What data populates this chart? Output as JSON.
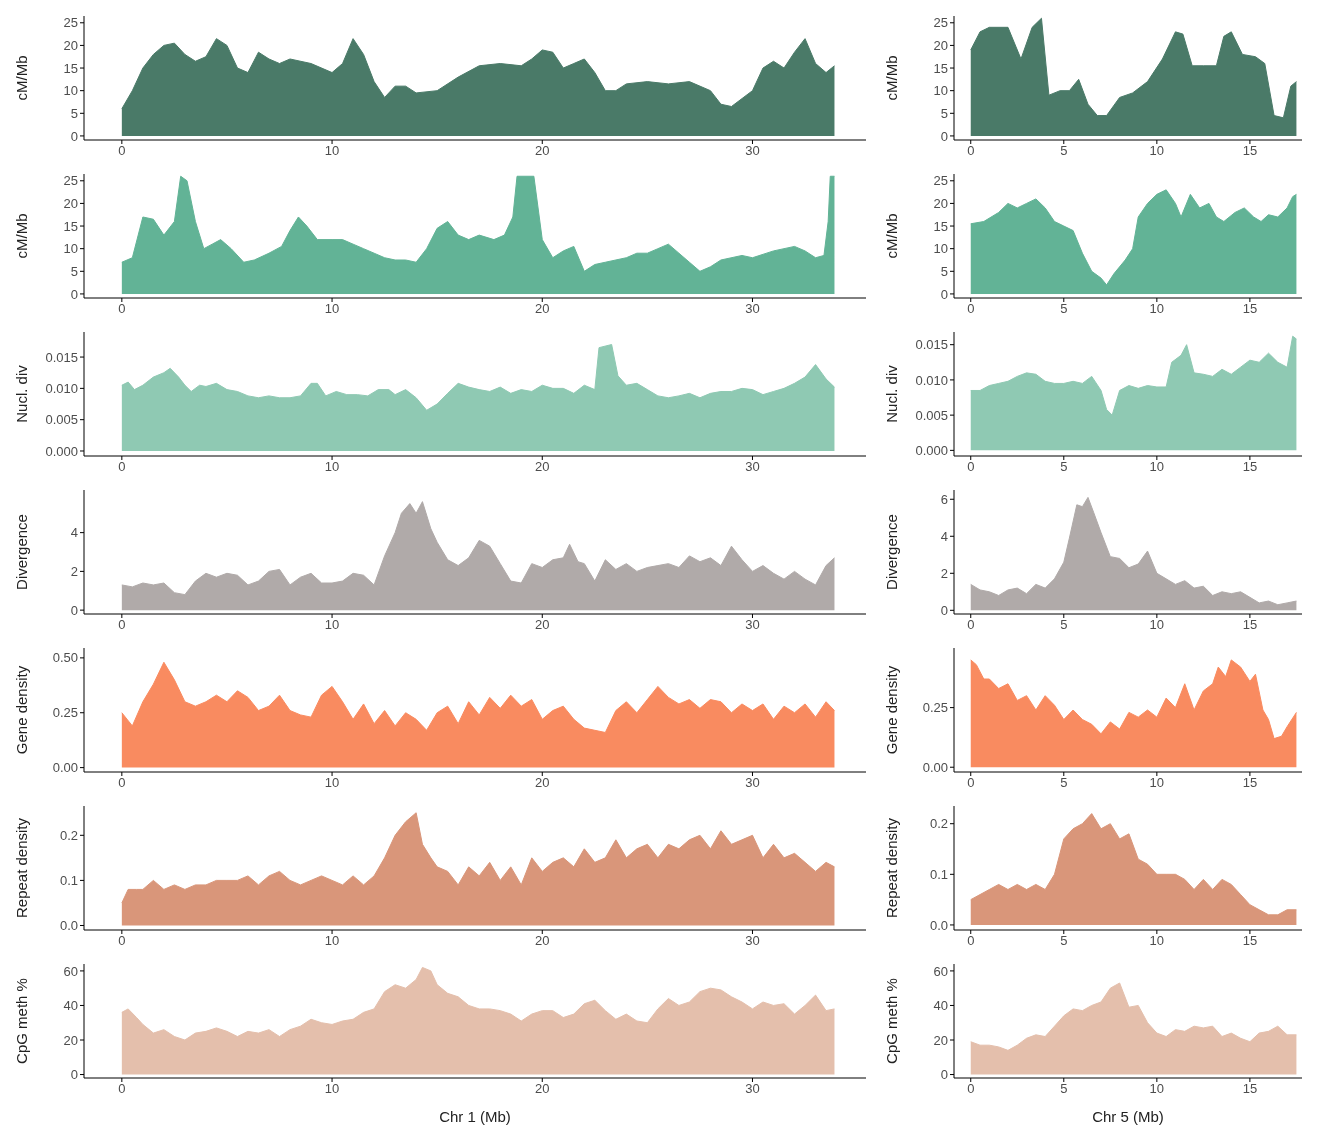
{
  "chart_data": [
    {
      "type": "area",
      "ylabel": "cM/Mb",
      "color": "#4a7a68",
      "xlim": [
        -1.8,
        35.4
      ],
      "xticks": [
        0,
        10,
        20,
        30
      ],
      "ylim": [
        -0.9,
        26.5
      ],
      "yticks": [
        0,
        5,
        10,
        15,
        20,
        25
      ],
      "x": [
        0,
        0.5,
        1,
        1.5,
        2,
        2.5,
        3,
        3.5,
        4,
        4.5,
        5,
        5.5,
        6,
        6.5,
        7,
        7.5,
        8,
        9,
        10,
        10.5,
        11,
        11.5,
        12,
        12.5,
        13,
        13.5,
        14,
        15,
        16,
        17,
        18,
        19,
        19.5,
        20,
        20.5,
        21,
        21.5,
        22,
        22.5,
        23,
        23.5,
        24,
        25,
        26,
        27,
        28,
        28.5,
        29,
        30,
        30.5,
        31,
        31.5,
        32,
        32.5,
        33,
        33.5,
        33.9
      ],
      "values": [
        6,
        10,
        15,
        18,
        20,
        20.5,
        18,
        16.5,
        17.5,
        21.5,
        20,
        15,
        14,
        18.5,
        17,
        16,
        17,
        16,
        14,
        16,
        21.5,
        18,
        12,
        8.5,
        11,
        11,
        9.5,
        10,
        13,
        15.5,
        16,
        15.5,
        17,
        19,
        18.5,
        15,
        16,
        17,
        14,
        10,
        10,
        11.5,
        12,
        11.5,
        12,
        10,
        7,
        6.5,
        10,
        15,
        16.5,
        15,
        18.5,
        21.5,
        16,
        14,
        15.5
      ]
    },
    {
      "type": "area",
      "ylabel": "cM/Mb",
      "color": "#4a7a68",
      "xlim": [
        -0.9,
        17.8
      ],
      "xticks": [
        0,
        5,
        10,
        15
      ],
      "ylim": [
        -0.9,
        26.5
      ],
      "yticks": [
        0,
        5,
        10,
        15,
        20,
        25
      ],
      "x": [
        0,
        0.5,
        1,
        2,
        2.7,
        3.3,
        3.8,
        4.2,
        4.8,
        5.3,
        5.8,
        6.3,
        6.8,
        7.3,
        8,
        8.7,
        9.5,
        10.3,
        11,
        11.4,
        11.9,
        12.5,
        13.2,
        13.6,
        14,
        14.6,
        15.3,
        15.8,
        16.3,
        16.8,
        17.2,
        17.5
      ],
      "values": [
        19,
        23,
        24,
        24,
        17,
        24,
        26,
        9,
        10,
        10,
        12.5,
        7,
        4.5,
        4.5,
        8.5,
        9.5,
        12,
        17,
        23,
        22.5,
        15.5,
        15.5,
        15.5,
        22,
        23,
        18,
        17.5,
        16,
        4.5,
        4,
        11,
        12
      ]
    },
    {
      "type": "area",
      "ylabel": "cM/Mb",
      "color": "#62b396",
      "xlim": [
        -1.8,
        35.4
      ],
      "xticks": [
        0,
        10,
        20,
        30
      ],
      "ylim": [
        -0.9,
        26.5
      ],
      "yticks": [
        0,
        5,
        10,
        15,
        20,
        25
      ],
      "x": [
        0,
        0.5,
        1,
        1.5,
        2,
        2.5,
        2.8,
        3.1,
        3.5,
        3.9,
        4.3,
        4.7,
        5.2,
        5.8,
        6.3,
        7,
        7.6,
        8,
        8.4,
        8.8,
        9.3,
        10,
        10.5,
        11,
        11.5,
        12,
        12.5,
        13,
        13.5,
        14,
        14.5,
        15,
        15.5,
        16,
        16.5,
        17,
        17.7,
        18.2,
        18.6,
        18.8,
        19.6,
        20,
        20.5,
        21,
        21.5,
        22,
        22.5,
        23,
        24,
        24.5,
        25,
        25.5,
        26,
        26.5,
        27,
        27.5,
        28,
        28.5,
        29.5,
        30,
        31,
        32,
        32.5,
        33,
        33.4,
        33.6,
        33.7,
        33.9
      ],
      "values": [
        7,
        8,
        17,
        16.5,
        13,
        16,
        26,
        25,
        16,
        10,
        11,
        12,
        10,
        7,
        7.5,
        9,
        10.5,
        14,
        17,
        15,
        12,
        12,
        12,
        11,
        10,
        9,
        8,
        7.5,
        7.5,
        7,
        10,
        14.5,
        16,
        13,
        12,
        13,
        12,
        13,
        17,
        26,
        26,
        12,
        8,
        9.5,
        10.5,
        5,
        6.5,
        7,
        8,
        9,
        9,
        10,
        11,
        9,
        7,
        5,
        6,
        7.5,
        8.5,
        8,
        9.5,
        10.5,
        9.5,
        8,
        8.5,
        16,
        26,
        26
      ]
    },
    {
      "type": "area",
      "ylabel": "cM/Mb",
      "color": "#62b396",
      "xlim": [
        -0.9,
        17.8
      ],
      "xticks": [
        0,
        5,
        10,
        15
      ],
      "ylim": [
        -0.9,
        26.5
      ],
      "yticks": [
        0,
        5,
        10,
        15,
        20,
        25
      ],
      "x": [
        0,
        0.7,
        1.5,
        2,
        2.5,
        3,
        3.5,
        4,
        4.5,
        5,
        5.5,
        6,
        6.5,
        7,
        7.3,
        7.7,
        8.3,
        8.7,
        9,
        9.5,
        10,
        10.5,
        11,
        11.3,
        11.8,
        12.3,
        12.8,
        13.2,
        13.6,
        14.2,
        14.7,
        15.2,
        15.6,
        16,
        16.5,
        17,
        17.3,
        17.5
      ],
      "values": [
        15.5,
        16,
        18,
        20,
        19,
        20,
        21,
        19,
        16,
        15,
        14,
        9,
        5,
        3.5,
        2,
        4.5,
        7.5,
        10,
        17,
        20,
        22,
        23,
        20,
        17,
        22,
        19,
        20,
        17,
        16,
        18,
        19,
        17,
        16,
        17.5,
        17,
        19,
        21.5,
        22
      ]
    },
    {
      "type": "area",
      "ylabel": "Nucl. div",
      "color": "#8fc9b3",
      "xlim": [
        -1.8,
        35.4
      ],
      "xticks": [
        0,
        10,
        20,
        30
      ],
      "ylim": [
        -0.0008,
        0.019
      ],
      "yticks": [
        {
          "value": 0,
          "label": "0.000"
        },
        {
          "value": 0.005,
          "label": "0.005"
        },
        {
          "value": 0.01,
          "label": "0.010"
        },
        {
          "value": 0.015,
          "label": "0.015"
        }
      ],
      "x": [
        0,
        0.3,
        0.6,
        1,
        1.5,
        2,
        2.3,
        2.7,
        3,
        3.3,
        3.7,
        4,
        4.5,
        5,
        5.5,
        6,
        6.5,
        7,
        7.5,
        8,
        8.5,
        9,
        9.3,
        9.7,
        10.2,
        10.7,
        11.2,
        11.7,
        12.2,
        12.7,
        13,
        13.5,
        14,
        14.5,
        15,
        15.5,
        16,
        16.5,
        17,
        17.5,
        18,
        18.5,
        19,
        19.5,
        20,
        20.5,
        21,
        21.5,
        22,
        22.5,
        22.7,
        23.3,
        23.6,
        24,
        24.5,
        25,
        25.5,
        26,
        26.5,
        27,
        27.5,
        28,
        28.5,
        29,
        29.5,
        30,
        30.5,
        31,
        31.5,
        32,
        32.5,
        33,
        33.5,
        33.9
      ],
      "values": [
        0.0105,
        0.011,
        0.0098,
        0.0105,
        0.0118,
        0.0125,
        0.0132,
        0.0118,
        0.0105,
        0.0095,
        0.0105,
        0.0103,
        0.0108,
        0.0098,
        0.0095,
        0.0088,
        0.0085,
        0.0088,
        0.0085,
        0.0085,
        0.0088,
        0.0108,
        0.0108,
        0.0088,
        0.0095,
        0.009,
        0.009,
        0.0088,
        0.0098,
        0.0098,
        0.009,
        0.0098,
        0.0085,
        0.0065,
        0.0075,
        0.0092,
        0.0108,
        0.0102,
        0.0098,
        0.0095,
        0.0102,
        0.0092,
        0.0098,
        0.0095,
        0.0105,
        0.01,
        0.01,
        0.0092,
        0.0105,
        0.0098,
        0.0165,
        0.017,
        0.012,
        0.0105,
        0.0108,
        0.0098,
        0.0088,
        0.0085,
        0.0088,
        0.0092,
        0.0085,
        0.0092,
        0.0095,
        0.0095,
        0.01,
        0.0098,
        0.009,
        0.0095,
        0.01,
        0.0108,
        0.0118,
        0.0138,
        0.0115,
        0.0102
      ]
    },
    {
      "type": "area",
      "ylabel": "Nucl. div",
      "color": "#8fc9b3",
      "xlim": [
        -0.9,
        17.8
      ],
      "xticks": [
        0,
        5,
        10,
        15
      ],
      "ylim": [
        -0.0008,
        0.0168
      ],
      "yticks": [
        {
          "value": 0,
          "label": "0.000"
        },
        {
          "value": 0.005,
          "label": "0.005"
        },
        {
          "value": 0.01,
          "label": "0.010"
        },
        {
          "value": 0.015,
          "label": "0.015"
        }
      ],
      "x": [
        0,
        0.5,
        1,
        1.5,
        2,
        2.5,
        3,
        3.5,
        4,
        4.5,
        5,
        5.5,
        6,
        6.5,
        7,
        7.3,
        7.6,
        8,
        8.5,
        9,
        9.5,
        10,
        10.5,
        10.8,
        11.3,
        11.6,
        12,
        12.5,
        13,
        13.5,
        14,
        14.5,
        15,
        15.5,
        16,
        16.5,
        17,
        17.3,
        17.5
      ],
      "values": [
        0.0085,
        0.0085,
        0.0092,
        0.0095,
        0.0098,
        0.0105,
        0.011,
        0.0108,
        0.0098,
        0.0095,
        0.0095,
        0.0098,
        0.0095,
        0.0105,
        0.0085,
        0.0058,
        0.005,
        0.0085,
        0.0092,
        0.0088,
        0.0092,
        0.009,
        0.009,
        0.0125,
        0.0135,
        0.015,
        0.011,
        0.0108,
        0.0105,
        0.0115,
        0.0108,
        0.0118,
        0.0128,
        0.0125,
        0.0138,
        0.0125,
        0.0118,
        0.0162,
        0.0158
      ]
    },
    {
      "type": "area",
      "ylabel": "Divergence",
      "color": "#b0aaa9",
      "xlim": [
        -1.8,
        35.4
      ],
      "xticks": [
        0,
        10,
        20,
        30
      ],
      "ylim": [
        -0.2,
        6.2
      ],
      "yticks": [
        0,
        2,
        4
      ],
      "x": [
        0,
        0.5,
        1,
        1.5,
        2,
        2.5,
        3,
        3.5,
        4,
        4.5,
        5,
        5.5,
        6,
        6.5,
        7,
        7.5,
        8,
        8.5,
        9,
        9.5,
        10,
        10.5,
        11,
        11.5,
        12,
        12.5,
        13,
        13.3,
        13.7,
        14,
        14.3,
        14.7,
        15,
        15.5,
        16,
        16.5,
        17,
        17.5,
        18,
        18.5,
        19,
        19.5,
        20,
        20.5,
        21,
        21.3,
        21.7,
        22,
        22.5,
        23,
        23.5,
        24,
        24.5,
        25,
        25.5,
        26,
        26.5,
        27,
        27.5,
        28,
        28.5,
        29,
        29.5,
        30,
        30.5,
        31,
        31.5,
        32,
        32.5,
        33,
        33.5,
        33.9
      ],
      "values": [
        1.3,
        1.2,
        1.4,
        1.3,
        1.4,
        0.9,
        0.8,
        1.5,
        1.9,
        1.7,
        1.9,
        1.8,
        1.3,
        1.5,
        2.0,
        2.1,
        1.3,
        1.7,
        1.9,
        1.4,
        1.4,
        1.5,
        1.9,
        1.8,
        1.3,
        2.8,
        4.0,
        5.0,
        5.5,
        5.0,
        5.6,
        4.2,
        3.5,
        2.6,
        2.3,
        2.7,
        3.6,
        3.3,
        2.4,
        1.5,
        1.4,
        2.4,
        2.2,
        2.6,
        2.7,
        3.4,
        2.5,
        2.4,
        1.5,
        2.6,
        2.1,
        2.4,
        2.0,
        2.2,
        2.3,
        2.4,
        2.2,
        2.8,
        2.5,
        2.7,
        2.3,
        3.3,
        2.6,
        2.0,
        2.3,
        1.9,
        1.6,
        2.0,
        1.6,
        1.3,
        2.3,
        2.7
      ]
    },
    {
      "type": "area",
      "ylabel": "Divergence",
      "color": "#b0aaa9",
      "xlim": [
        -0.9,
        17.8
      ],
      "xticks": [
        0,
        5,
        10,
        15
      ],
      "ylim": [
        -0.2,
        6.5
      ],
      "yticks": [
        0,
        2,
        4,
        6
      ],
      "x": [
        0,
        0.5,
        1,
        1.5,
        2,
        2.5,
        3,
        3.5,
        4,
        4.5,
        5,
        5.3,
        5.7,
        6,
        6.3,
        6.6,
        7,
        7.5,
        8,
        8.5,
        9,
        9.5,
        10,
        10.5,
        11,
        11.5,
        12,
        12.5,
        13,
        13.5,
        14,
        14.5,
        15,
        15.5,
        16,
        16.5,
        17,
        17.5
      ],
      "values": [
        1.4,
        1.1,
        1.0,
        0.8,
        1.1,
        1.2,
        0.9,
        1.4,
        1.2,
        1.7,
        2.6,
        3.9,
        5.7,
        5.6,
        6.1,
        5.3,
        4.2,
        2.9,
        2.8,
        2.3,
        2.5,
        3.2,
        2.0,
        1.7,
        1.4,
        1.6,
        1.2,
        1.3,
        0.8,
        1.0,
        0.9,
        1.0,
        0.7,
        0.4,
        0.5,
        0.3,
        0.4,
        0.5
      ]
    },
    {
      "type": "area",
      "ylabel": "Gene density",
      "color": "#f98b60",
      "xlim": [
        -1.8,
        35.4
      ],
      "xticks": [
        0,
        10,
        20,
        30
      ],
      "ylim": [
        -0.02,
        0.545
      ],
      "yticks": [
        {
          "value": 0,
          "label": "0.00"
        },
        {
          "value": 0.25,
          "label": "0.25"
        },
        {
          "value": 0.5,
          "label": "0.50"
        }
      ],
      "x": [
        0,
        0.5,
        1,
        1.5,
        2,
        2.5,
        3,
        3.5,
        4,
        4.5,
        5,
        5.5,
        6,
        6.5,
        7,
        7.5,
        8,
        8.5,
        9,
        9.5,
        10,
        10.5,
        11,
        11.5,
        12,
        12.5,
        13,
        13.5,
        14,
        14.5,
        15,
        15.5,
        16,
        16.5,
        17,
        17.5,
        18,
        18.5,
        19,
        19.5,
        20,
        20.5,
        21,
        21.5,
        22,
        22.5,
        23,
        23.5,
        24,
        24.5,
        25,
        25.5,
        26,
        26.5,
        27,
        27.5,
        28,
        28.5,
        29,
        29.5,
        30,
        30.5,
        31,
        31.5,
        32,
        32.5,
        33,
        33.5,
        33.9
      ],
      "values": [
        0.25,
        0.19,
        0.3,
        0.38,
        0.48,
        0.4,
        0.3,
        0.28,
        0.3,
        0.33,
        0.3,
        0.35,
        0.32,
        0.26,
        0.28,
        0.33,
        0.26,
        0.24,
        0.23,
        0.33,
        0.37,
        0.3,
        0.22,
        0.29,
        0.2,
        0.26,
        0.19,
        0.25,
        0.22,
        0.17,
        0.25,
        0.28,
        0.2,
        0.3,
        0.24,
        0.32,
        0.27,
        0.33,
        0.28,
        0.31,
        0.22,
        0.26,
        0.28,
        0.22,
        0.18,
        0.17,
        0.16,
        0.26,
        0.3,
        0.25,
        0.31,
        0.37,
        0.32,
        0.29,
        0.31,
        0.27,
        0.31,
        0.3,
        0.25,
        0.29,
        0.26,
        0.29,
        0.22,
        0.28,
        0.25,
        0.29,
        0.23,
        0.3,
        0.26
      ]
    },
    {
      "type": "area",
      "ylabel": "Gene density",
      "color": "#f98b60",
      "xlim": [
        -0.9,
        17.8
      ],
      "xticks": [
        0,
        5,
        10,
        15
      ],
      "ylim": [
        -0.02,
        0.5
      ],
      "yticks": [
        {
          "value": 0,
          "label": "0.00"
        },
        {
          "value": 0.25,
          "label": "0.25"
        }
      ],
      "x": [
        0,
        0.3,
        0.7,
        1,
        1.5,
        2,
        2.5,
        3,
        3.5,
        4,
        4.5,
        5,
        5.5,
        6,
        6.5,
        7,
        7.5,
        8,
        8.5,
        9,
        9.5,
        10,
        10.5,
        11,
        11.5,
        12,
        12.5,
        13,
        13.3,
        13.7,
        14,
        14.5,
        15,
        15.3,
        15.7,
        16,
        16.3,
        16.7,
        17,
        17.5
      ],
      "values": [
        0.45,
        0.43,
        0.37,
        0.37,
        0.33,
        0.35,
        0.28,
        0.3,
        0.24,
        0.3,
        0.26,
        0.2,
        0.24,
        0.2,
        0.18,
        0.14,
        0.19,
        0.16,
        0.23,
        0.21,
        0.24,
        0.21,
        0.29,
        0.25,
        0.35,
        0.24,
        0.32,
        0.35,
        0.42,
        0.38,
        0.45,
        0.42,
        0.36,
        0.39,
        0.24,
        0.2,
        0.12,
        0.13,
        0.17,
        0.23
      ]
    },
    {
      "type": "area",
      "ylabel": "Repeat density",
      "color": "#d9967a",
      "xlim": [
        -1.8,
        35.4
      ],
      "xticks": [
        0,
        10,
        20,
        30
      ],
      "ylim": [
        -0.01,
        0.265
      ],
      "yticks": [
        {
          "value": 0,
          "label": "0.0"
        },
        {
          "value": 0.1,
          "label": "0.1"
        },
        {
          "value": 0.2,
          "label": "0.2"
        }
      ],
      "x": [
        0,
        0.3,
        0.7,
        1,
        1.5,
        2,
        2.5,
        3,
        3.5,
        4,
        4.5,
        5,
        5.5,
        6,
        6.5,
        7,
        7.5,
        8,
        8.5,
        9,
        9.5,
        10,
        10.5,
        11,
        11.5,
        12,
        12.5,
        13,
        13.5,
        14,
        14.3,
        14.7,
        15,
        15.5,
        16,
        16.5,
        17,
        17.5,
        18,
        18.5,
        19,
        19.5,
        20,
        20.5,
        21,
        21.5,
        22,
        22.5,
        23,
        23.5,
        24,
        24.5,
        25,
        25.5,
        26,
        26.5,
        27,
        27.5,
        28,
        28.5,
        29,
        29.5,
        30,
        30.5,
        31,
        31.5,
        32,
        32.5,
        33,
        33.5,
        33.9
      ],
      "values": [
        0.05,
        0.08,
        0.08,
        0.08,
        0.1,
        0.08,
        0.09,
        0.08,
        0.09,
        0.09,
        0.1,
        0.1,
        0.1,
        0.11,
        0.09,
        0.11,
        0.12,
        0.1,
        0.09,
        0.1,
        0.11,
        0.1,
        0.09,
        0.11,
        0.09,
        0.11,
        0.15,
        0.2,
        0.23,
        0.25,
        0.18,
        0.15,
        0.13,
        0.12,
        0.09,
        0.13,
        0.11,
        0.14,
        0.1,
        0.13,
        0.09,
        0.15,
        0.12,
        0.14,
        0.15,
        0.13,
        0.17,
        0.14,
        0.15,
        0.19,
        0.15,
        0.17,
        0.18,
        0.15,
        0.18,
        0.17,
        0.19,
        0.2,
        0.17,
        0.21,
        0.18,
        0.19,
        0.2,
        0.15,
        0.18,
        0.15,
        0.16,
        0.14,
        0.12,
        0.14,
        0.13
      ]
    },
    {
      "type": "area",
      "ylabel": "Repeat density",
      "color": "#d9967a",
      "xlim": [
        -0.9,
        17.8
      ],
      "xticks": [
        0,
        5,
        10,
        15
      ],
      "ylim": [
        -0.01,
        0.235
      ],
      "yticks": [
        {
          "value": 0,
          "label": "0.0"
        },
        {
          "value": 0.1,
          "label": "0.1"
        },
        {
          "value": 0.2,
          "label": "0.2"
        }
      ],
      "x": [
        0,
        0.5,
        1,
        1.5,
        2,
        2.5,
        3,
        3.5,
        4,
        4.5,
        5,
        5.5,
        6,
        6.5,
        7,
        7.5,
        8,
        8.5,
        9,
        9.5,
        10,
        10.5,
        11,
        11.5,
        12,
        12.5,
        13,
        13.5,
        14,
        14.5,
        15,
        15.5,
        16,
        16.5,
        17,
        17.5
      ],
      "values": [
        0.05,
        0.06,
        0.07,
        0.08,
        0.07,
        0.08,
        0.07,
        0.08,
        0.07,
        0.1,
        0.17,
        0.19,
        0.2,
        0.22,
        0.19,
        0.2,
        0.17,
        0.18,
        0.13,
        0.12,
        0.1,
        0.1,
        0.1,
        0.09,
        0.07,
        0.09,
        0.07,
        0.09,
        0.08,
        0.06,
        0.04,
        0.03,
        0.02,
        0.02,
        0.03,
        0.03
      ]
    },
    {
      "type": "area",
      "ylabel": "CpG meth %",
      "xlabel": "Chr 1 (Mb)",
      "color": "#e4bfac",
      "xlim": [
        -1.8,
        35.4
      ],
      "xticks": [
        0,
        10,
        20,
        30
      ],
      "ylim": [
        -2,
        64
      ],
      "yticks": [
        0,
        20,
        40,
        60
      ],
      "x": [
        0,
        0.3,
        0.7,
        1,
        1.5,
        2,
        2.5,
        3,
        3.5,
        4,
        4.5,
        5,
        5.5,
        6,
        6.5,
        7,
        7.5,
        8,
        8.5,
        9,
        9.5,
        10,
        10.5,
        11,
        11.5,
        12,
        12.5,
        13,
        13.5,
        14,
        14.3,
        14.7,
        15,
        15.5,
        16,
        16.5,
        17,
        17.5,
        18,
        18.5,
        19,
        19.5,
        20,
        20.5,
        21,
        21.5,
        22,
        22.5,
        23,
        23.5,
        24,
        24.5,
        25,
        25.5,
        26,
        26.5,
        27,
        27.5,
        28,
        28.5,
        29,
        29.5,
        30,
        30.5,
        31,
        31.5,
        32,
        32.5,
        33,
        33.5,
        33.9
      ],
      "values": [
        36,
        38,
        33,
        29,
        24,
        26,
        22,
        20,
        24,
        25,
        27,
        25,
        22,
        25,
        24,
        26,
        22,
        26,
        28,
        32,
        30,
        29,
        31,
        32,
        36,
        38,
        48,
        52,
        50,
        55,
        62,
        60,
        52,
        47,
        45,
        40,
        38,
        38,
        37,
        35,
        31,
        35,
        37,
        37,
        33,
        35,
        41,
        43,
        37,
        32,
        35,
        31,
        30,
        38,
        44,
        40,
        42,
        48,
        50,
        49,
        45,
        42,
        38,
        42,
        40,
        41,
        35,
        40,
        46,
        37,
        38
      ]
    },
    {
      "type": "area",
      "ylabel": "CpG meth %",
      "xlabel": "Chr 5 (Mb)",
      "color": "#e4bfac",
      "xlim": [
        -0.9,
        17.8
      ],
      "xticks": [
        0,
        5,
        10,
        15
      ],
      "ylim": [
        -2,
        64
      ],
      "yticks": [
        0,
        20,
        40,
        60
      ],
      "x": [
        0,
        0.5,
        1,
        1.5,
        2,
        2.5,
        3,
        3.5,
        4,
        4.5,
        5,
        5.5,
        6,
        6.5,
        7,
        7.5,
        8,
        8.5,
        9,
        9.5,
        10,
        10.5,
        11,
        11.5,
        12,
        12.5,
        13,
        13.5,
        14,
        14.5,
        15,
        15.5,
        16,
        16.5,
        17,
        17.5
      ],
      "values": [
        19,
        17,
        17,
        16,
        14,
        17,
        21,
        23,
        22,
        28,
        34,
        38,
        37,
        40,
        42,
        50,
        53,
        39,
        40,
        30,
        24,
        22,
        26,
        25,
        28,
        27,
        28,
        22,
        24,
        21,
        19,
        24,
        25,
        28,
        23,
        23
      ]
    }
  ]
}
